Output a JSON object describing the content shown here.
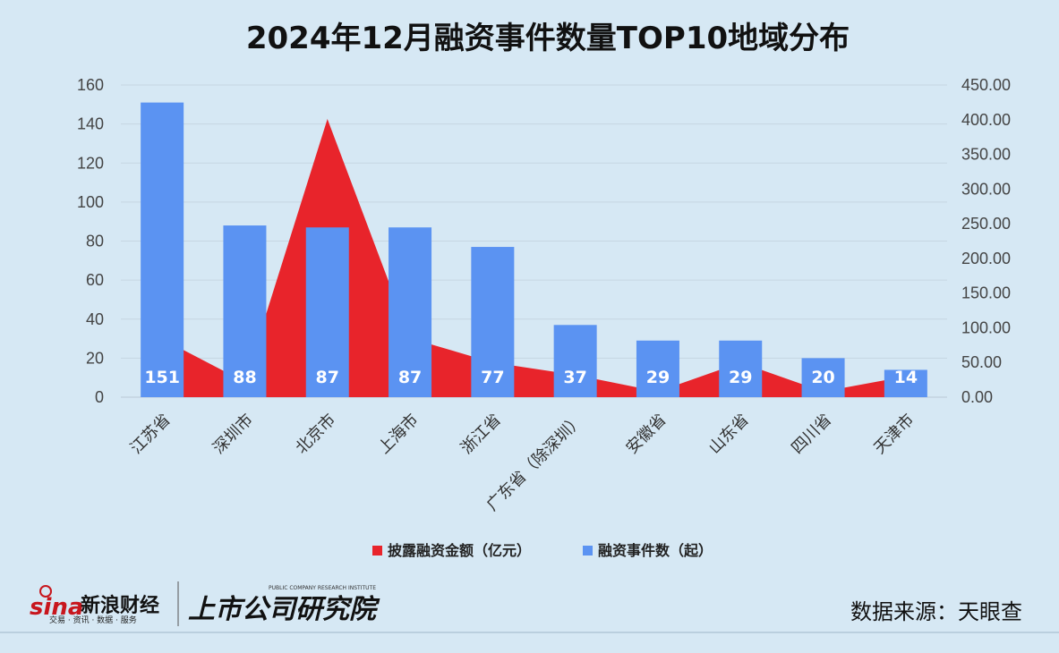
{
  "chart_data": {
    "type": "bar",
    "title": "2024年12月融资事件数量TOP10地域分布",
    "categories": [
      "江苏省",
      "深圳市",
      "北京市",
      "上海市",
      "浙江省",
      "广东省（除深圳）",
      "安徽省",
      "山东省",
      "四川省",
      "天津市"
    ],
    "series": [
      {
        "name": "披露融资金额（亿元）",
        "type": "area",
        "axis": "right",
        "color": "#e8242b",
        "values": [
          84,
          22,
          401,
          85,
          50,
          32,
          8,
          50,
          8,
          30
        ]
      },
      {
        "name": "融资事件数（起）",
        "type": "bar",
        "axis": "left",
        "color": "#5b93f2",
        "values": [
          151,
          88,
          87,
          87,
          77,
          37,
          29,
          29,
          20,
          14
        ]
      }
    ],
    "y_left": {
      "min": 0,
      "max": 160,
      "step": 20,
      "ticks": [
        "0",
        "20",
        "40",
        "60",
        "80",
        "100",
        "120",
        "140",
        "160"
      ]
    },
    "y_right": {
      "min": 0,
      "max": 450,
      "step": 50,
      "ticks": [
        "0.00",
        "50.00",
        "100.00",
        "150.00",
        "200.00",
        "250.00",
        "300.00",
        "350.00",
        "400.00",
        "450.00"
      ]
    },
    "grid": true,
    "legend": "bottom"
  },
  "source": "数据来源：天眼查",
  "logos": {
    "sina_mark": "sina",
    "sina_name": "新浪财经",
    "sina_tagline": "交易 · 资讯 · 数据 · 服务",
    "institute_name": "上市公司研究院",
    "institute_en": "PUBLIC COMPANY RESEARCH INSTITUTE"
  },
  "colors": {
    "background": "#d6e8f4",
    "bar": "#5b93f2",
    "area": "#e8242b",
    "grid": "#c3d3df"
  }
}
